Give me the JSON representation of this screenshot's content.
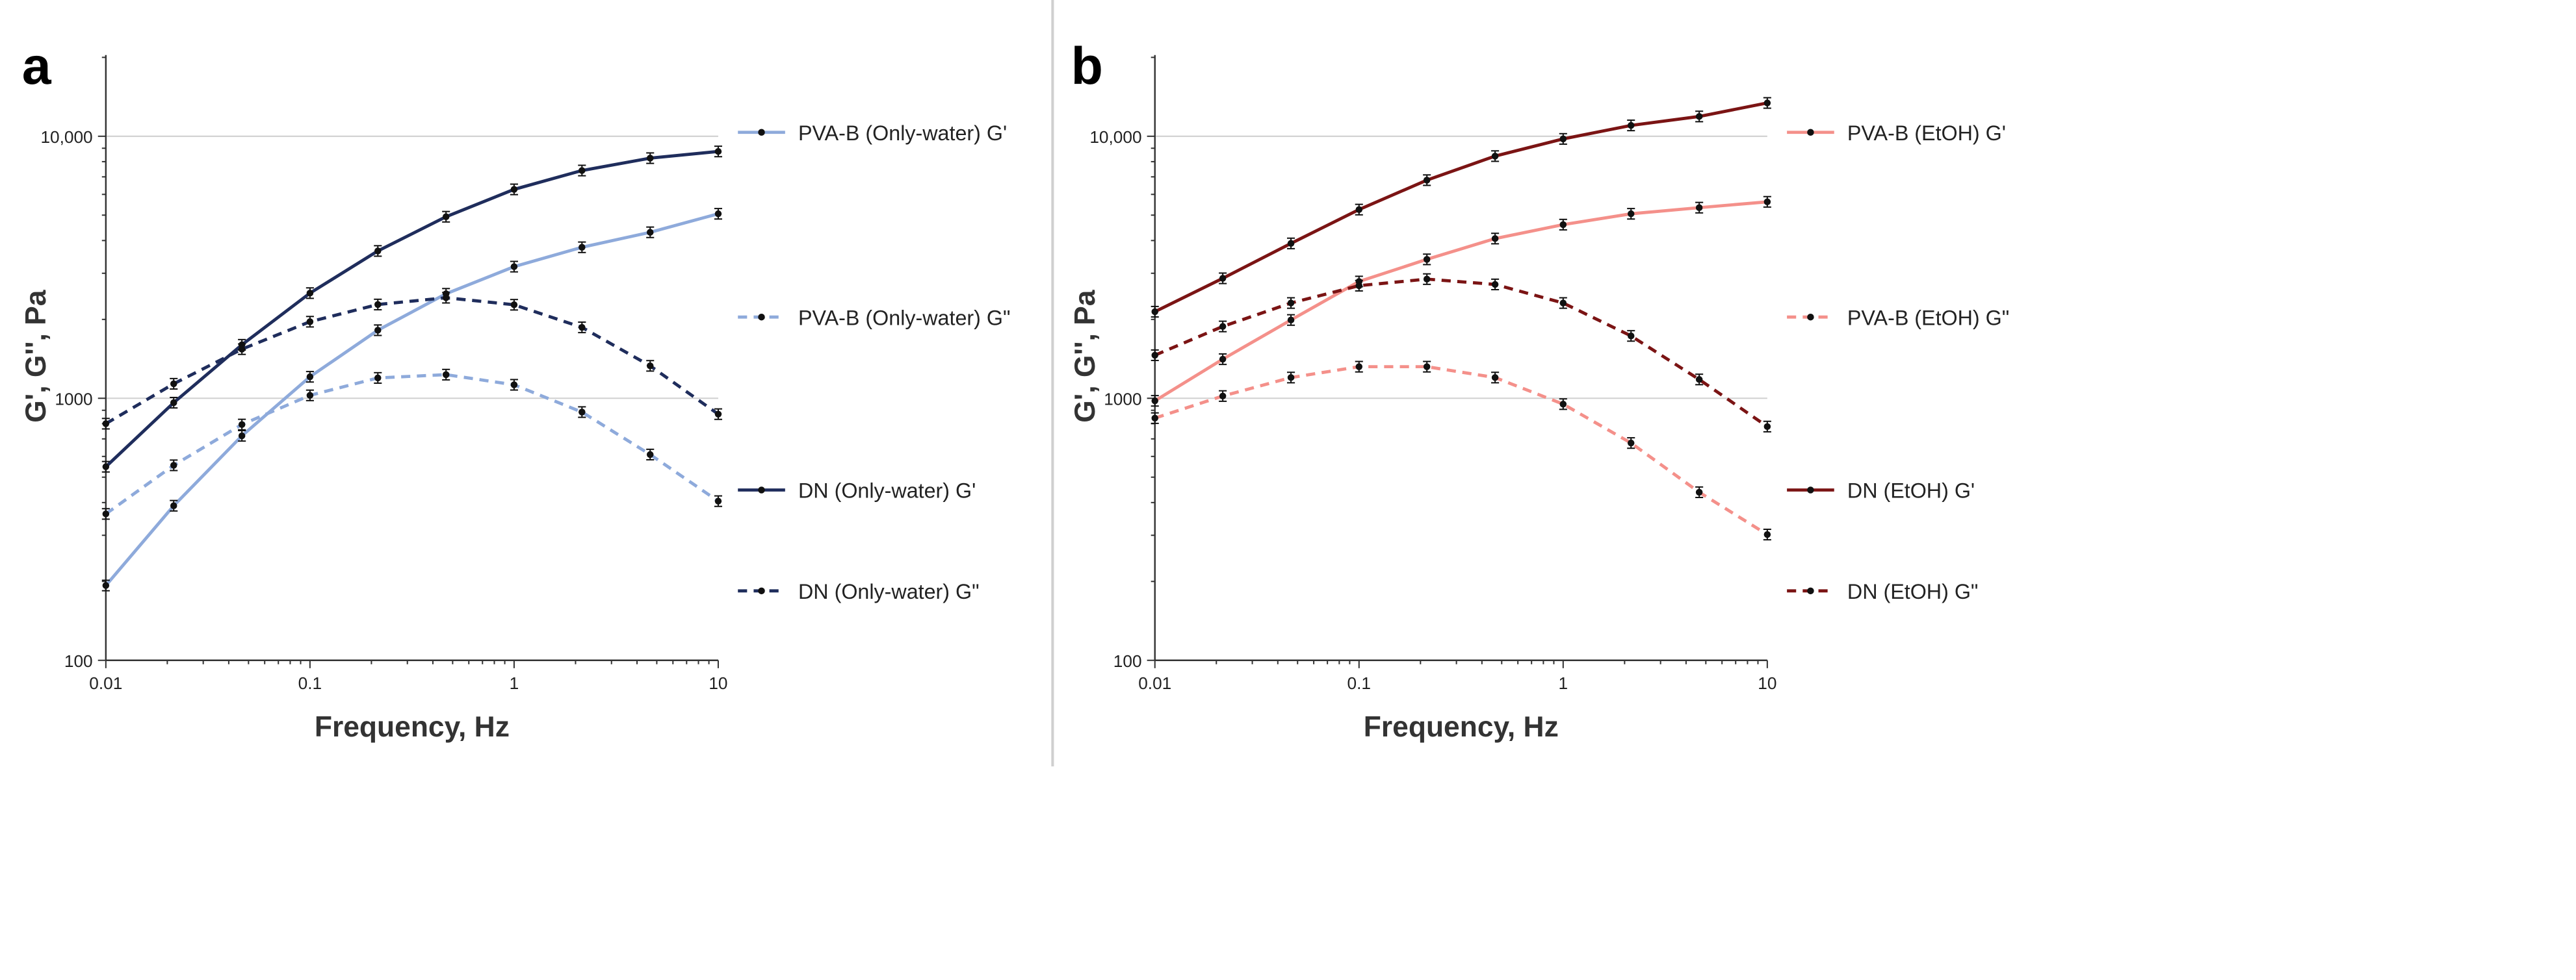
{
  "chart_data": [
    {
      "type": "line",
      "panel_label": "a",
      "xlabel": "Frequency, Hz",
      "ylabel": "G', G'', Pa",
      "xscale": "log",
      "yscale": "log",
      "xlim": [
        0.01,
        10
      ],
      "ylim": [
        100,
        20000
      ],
      "xticks": [
        "0.01",
        "0.1",
        "1",
        "10"
      ],
      "yticks": [
        "100",
        "1000",
        "10,000"
      ],
      "grid": "horizontal",
      "legend": "right",
      "x": [
        0.01,
        0.0215,
        0.0464,
        0.1,
        0.215,
        0.464,
        1,
        2.15,
        4.64,
        10
      ],
      "series": [
        {
          "name": "PVA-B (Only-water) G'",
          "color": "#8eaadb",
          "dash": false,
          "values": [
            193,
            389,
            719,
            1208,
            1819,
            2505,
            3180,
            3770,
            4300,
            5060
          ]
        },
        {
          "name": "PVA-B (Only-water) G\"",
          "color": "#8eaadb",
          "dash": true,
          "values": [
            362,
            555,
            794,
            1026,
            1196,
            1231,
            1126,
            886,
            610,
            405
          ]
        },
        {
          "name": "DN (Only-water) G'",
          "color": "#1f2d5c",
          "dash": false,
          "values": [
            548,
            962,
            1600,
            2520,
            3650,
            4930,
            6270,
            7400,
            8250,
            8750
          ]
        },
        {
          "name": "DN (Only-water) G\"",
          "color": "#1f2d5c",
          "dash": true,
          "values": [
            800,
            1136,
            1540,
            1960,
            2280,
            2420,
            2275,
            1865,
            1330,
            870
          ]
        }
      ]
    },
    {
      "type": "line",
      "panel_label": "b",
      "xlabel": "Frequency, Hz",
      "ylabel": "G', G'', Pa",
      "xscale": "log",
      "yscale": "log",
      "xlim": [
        0.01,
        10
      ],
      "ylim": [
        100,
        20000
      ],
      "xticks": [
        "0.01",
        "0.1",
        "1",
        "10"
      ],
      "yticks": [
        "100",
        "1000",
        "10,000"
      ],
      "grid": "horizontal",
      "legend": "right",
      "x": [
        0.01,
        0.0215,
        0.0464,
        0.1,
        0.215,
        0.464,
        1,
        2.15,
        4.64,
        10
      ],
      "series": [
        {
          "name": "PVA-B (EtOH) G'",
          "color": "#f4908a",
          "dash": false,
          "values": [
            978,
            1410,
            1990,
            2790,
            3390,
            4070,
            4600,
            5060,
            5340,
            5620
          ]
        },
        {
          "name": "PVA-B (EtOH) G\"",
          "color": "#f4908a",
          "dash": true,
          "values": [
            840,
            1020,
            1200,
            1320,
            1320,
            1200,
            950,
            675,
            438,
            302
          ]
        },
        {
          "name": "DN (EtOH) G'",
          "color": "#7b1414",
          "dash": false,
          "values": [
            2140,
            2870,
            3900,
            5250,
            6800,
            8400,
            9770,
            11000,
            11900,
            13400
          ]
        },
        {
          "name": "DN (EtOH) G\"",
          "color": "#7b1414",
          "dash": true,
          "values": [
            1460,
            1880,
            2310,
            2690,
            2850,
            2720,
            2310,
            1730,
            1180,
            780
          ]
        }
      ]
    }
  ]
}
